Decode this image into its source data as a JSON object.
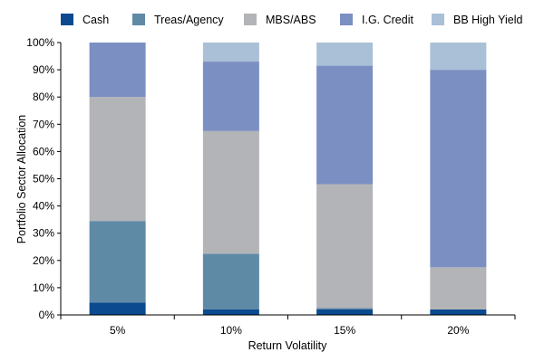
{
  "chart_data": {
    "type": "bar",
    "stacked": true,
    "title": "",
    "xlabel": "Return Volatility",
    "ylabel": "Portfolio Sector Allocation",
    "ylim": [
      0,
      100
    ],
    "y_tick_values": [
      0,
      10,
      20,
      30,
      40,
      50,
      60,
      70,
      80,
      90,
      100
    ],
    "y_tick_labels": [
      "0%",
      "10%",
      "20%",
      "30%",
      "40%",
      "50%",
      "60%",
      "70%",
      "80%",
      "90%",
      "100%"
    ],
    "categories": [
      "5%",
      "10%",
      "15%",
      "20%"
    ],
    "legend_position": "top",
    "series": [
      {
        "name": "Cash",
        "color": "#0b4a8f",
        "values": [
          4.5,
          2,
          2,
          2
        ]
      },
      {
        "name": "Treas/Agency",
        "color": "#5f8aa6",
        "values": [
          30,
          20.5,
          0.5,
          0
        ]
      },
      {
        "name": "MBS/ABS",
        "color": "#b3b4b7",
        "values": [
          45.5,
          45,
          45.5,
          15.5
        ]
      },
      {
        "name": "I.G. Credit",
        "color": "#7b8fc2",
        "values": [
          20,
          25.5,
          43.5,
          72.5
        ]
      },
      {
        "name": "BB High Yield",
        "color": "#a9c0d6",
        "values": [
          0,
          7,
          8.5,
          10
        ]
      }
    ]
  }
}
